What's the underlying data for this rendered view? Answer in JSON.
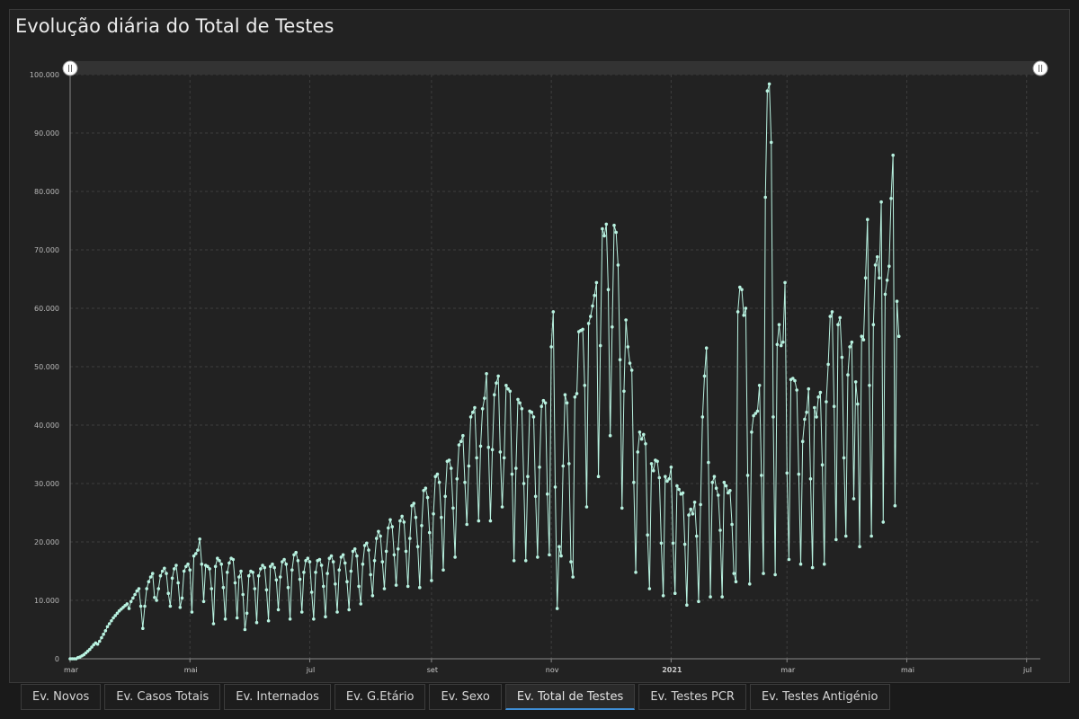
{
  "title": "Evolução diária do Total de Testes",
  "tabs": [
    {
      "label": "Ev. Novos",
      "active": false
    },
    {
      "label": "Ev. Casos Totais",
      "active": false
    },
    {
      "label": "Ev. Internados",
      "active": false
    },
    {
      "label": "Ev. G.Etário",
      "active": false
    },
    {
      "label": "Ev. Sexo",
      "active": false
    },
    {
      "label": "Ev. Total de Testes",
      "active": true
    },
    {
      "label": "Ev. Testes PCR",
      "active": false
    },
    {
      "label": "Ev. Testes Antigénio",
      "active": false
    }
  ],
  "colors": {
    "line": "#b8f2e0",
    "background": "#222222",
    "active_tab": "#3f8fd8"
  },
  "chart_data": {
    "type": "line",
    "title": "Evolução diária do Total de Testes",
    "x_range": [
      "2020-03-01",
      "2021-07-08"
    ],
    "ylim": [
      0,
      100000
    ],
    "yticks": [
      {
        "value": 0,
        "label": "0"
      },
      {
        "value": 10000,
        "label": "10.000"
      },
      {
        "value": 20000,
        "label": "20.000"
      },
      {
        "value": 30000,
        "label": "30.000"
      },
      {
        "value": 40000,
        "label": "40.000"
      },
      {
        "value": 50000,
        "label": "50.000"
      },
      {
        "value": 60000,
        "label": "60.000"
      },
      {
        "value": 70000,
        "label": "70.000"
      },
      {
        "value": 80000,
        "label": "80.000"
      },
      {
        "value": 90000,
        "label": "90.000"
      },
      {
        "value": 100000,
        "label": "100.000"
      }
    ],
    "xticks": [
      {
        "date": "2020-03-01",
        "label": "mar",
        "bold": false
      },
      {
        "date": "2020-05-01",
        "label": "mai",
        "bold": false
      },
      {
        "date": "2020-07-01",
        "label": "jul",
        "bold": false
      },
      {
        "date": "2020-09-01",
        "label": "set",
        "bold": false
      },
      {
        "date": "2020-11-01",
        "label": "nov",
        "bold": false
      },
      {
        "date": "2021-01-01",
        "label": "2021",
        "bold": true
      },
      {
        "date": "2021-03-01",
        "label": "mar",
        "bold": false
      },
      {
        "date": "2021-05-01",
        "label": "mai",
        "bold": false
      },
      {
        "date": "2021-07-01",
        "label": "jul",
        "bold": false
      }
    ],
    "grid": true,
    "series": [
      {
        "start_date": "2020-03-01",
        "values": [
          0,
          0,
          0,
          0,
          200,
          300,
          500,
          700,
          1000,
          1300,
          1600,
          2000,
          2400,
          2700,
          2500,
          3000,
          3600,
          4200,
          4800,
          5500,
          6000,
          6500,
          7000,
          7400,
          7800,
          8200,
          8500,
          8800,
          9100,
          9400,
          8600,
          9800,
          10400,
          11000,
          11600,
          12000,
          9000,
          5200,
          9000,
          12000,
          13200,
          14000,
          14600,
          10500,
          10000,
          12000,
          14200,
          15000,
          15500,
          14600,
          11200,
          9000,
          13800,
          15400,
          16000,
          13000,
          8800,
          10400,
          15000,
          15800,
          16200,
          15200,
          8000,
          17600,
          18000,
          18600,
          20500,
          16200,
          9800,
          16000,
          15800,
          15400,
          12000,
          6000,
          15800,
          17200,
          16800,
          16200,
          12200,
          6800,
          14800,
          16400,
          17200,
          17000,
          13000,
          7000,
          14000,
          15000,
          11000,
          5000,
          7800,
          14200,
          15000,
          14800,
          12000,
          6200,
          14200,
          15400,
          16000,
          15600,
          11800,
          6500,
          15800,
          16200,
          15600,
          13500,
          8400,
          14000,
          16600,
          17000,
          16200,
          12200,
          6800,
          15200,
          17800,
          18200,
          16800,
          13600,
          8000,
          14800,
          16800,
          17200,
          16600,
          11400,
          6800,
          14800,
          16800,
          17000,
          16000,
          12400,
          7200,
          14600,
          17200,
          17600,
          16600,
          12800,
          8000,
          15200,
          17400,
          17800,
          16400,
          13200,
          8400,
          15000,
          18400,
          18800,
          17600,
          12400,
          9400,
          16200,
          19400,
          19800,
          18600,
          14400,
          10800,
          16800,
          20600,
          21800,
          21000,
          16600,
          12000,
          18400,
          22400,
          23800,
          22600,
          17800,
          12600,
          18800,
          23600,
          24400,
          23400,
          18400,
          12400,
          20600,
          26200,
          26600,
          24200,
          19200,
          12200,
          22800,
          28800,
          29200,
          27600,
          21600,
          13400,
          24800,
          31200,
          31600,
          30200,
          24200,
          15200,
          27800,
          33800,
          34000,
          32600,
          25800,
          17400,
          30800,
          36600,
          37200,
          38200,
          30200,
          23000,
          33000,
          41400,
          42200,
          43000,
          34400,
          23600,
          36400,
          42800,
          44600,
          48800,
          36200,
          23600,
          35800,
          45200,
          47200,
          48400,
          35400,
          26000,
          34400,
          46800,
          46200,
          45800,
          31600,
          16800,
          32600,
          44400,
          43800,
          42800,
          30000,
          16800,
          31200,
          42400,
          42200,
          41400,
          27800,
          17400,
          32800,
          43200,
          44200,
          43800,
          28200,
          17800,
          53400,
          59400,
          29400,
          8600,
          19200,
          17600,
          33000,
          45200,
          43800,
          33400,
          16600,
          14000,
          44800,
          45400,
          56000,
          56200,
          56400,
          46800,
          26000,
          57400,
          58600,
          60400,
          62200,
          64400,
          31200,
          53600,
          73600,
          72400,
          74400,
          63200,
          38200,
          56800,
          74200,
          73000,
          67400,
          51200,
          25800,
          45800,
          58000,
          53400,
          50600,
          49400,
          30200,
          14800,
          35400,
          38800,
          37600,
          38400,
          36800,
          21200,
          12000,
          33400,
          32200,
          34000,
          33800,
          31000,
          19800,
          10800,
          31200,
          30400,
          30800,
          32800,
          19800,
          11200,
          29600,
          29000,
          28200,
          28400,
          19600,
          9200,
          24600,
          25600,
          24800,
          26800,
          21000,
          9800,
          26400,
          41400,
          48400,
          53200,
          33600,
          10600,
          30200,
          31200,
          29200,
          28000,
          22000,
          10600,
          30200,
          29600,
          28400,
          28800,
          23000,
          14600,
          13200,
          59400,
          63600,
          63200,
          58800,
          60000,
          31400,
          12800,
          38800,
          41600,
          42000,
          42400,
          46800,
          31400,
          14600,
          79000,
          97200,
          98400,
          88400,
          41400,
          14400,
          53800,
          57200,
          53600,
          54200,
          64400,
          31800,
          17000,
          47800,
          48000,
          47600,
          46000,
          31600,
          16200,
          37200,
          41000,
          42200,
          46200,
          30800,
          15600,
          43000,
          41400,
          44800,
          45600,
          33200,
          16200,
          44000,
          50400,
          58600,
          59400,
          43200,
          20400,
          57200,
          58400,
          51600,
          34400,
          21000,
          48600,
          53400,
          54200,
          27400,
          47400,
          43600,
          19200,
          55200,
          54600,
          65200,
          75200,
          46800,
          21000,
          57200,
          67400,
          68800,
          65200,
          78200,
          23400,
          62400,
          64800,
          67200,
          78800,
          86200,
          26200,
          61200,
          55200
        ]
      }
    ]
  }
}
